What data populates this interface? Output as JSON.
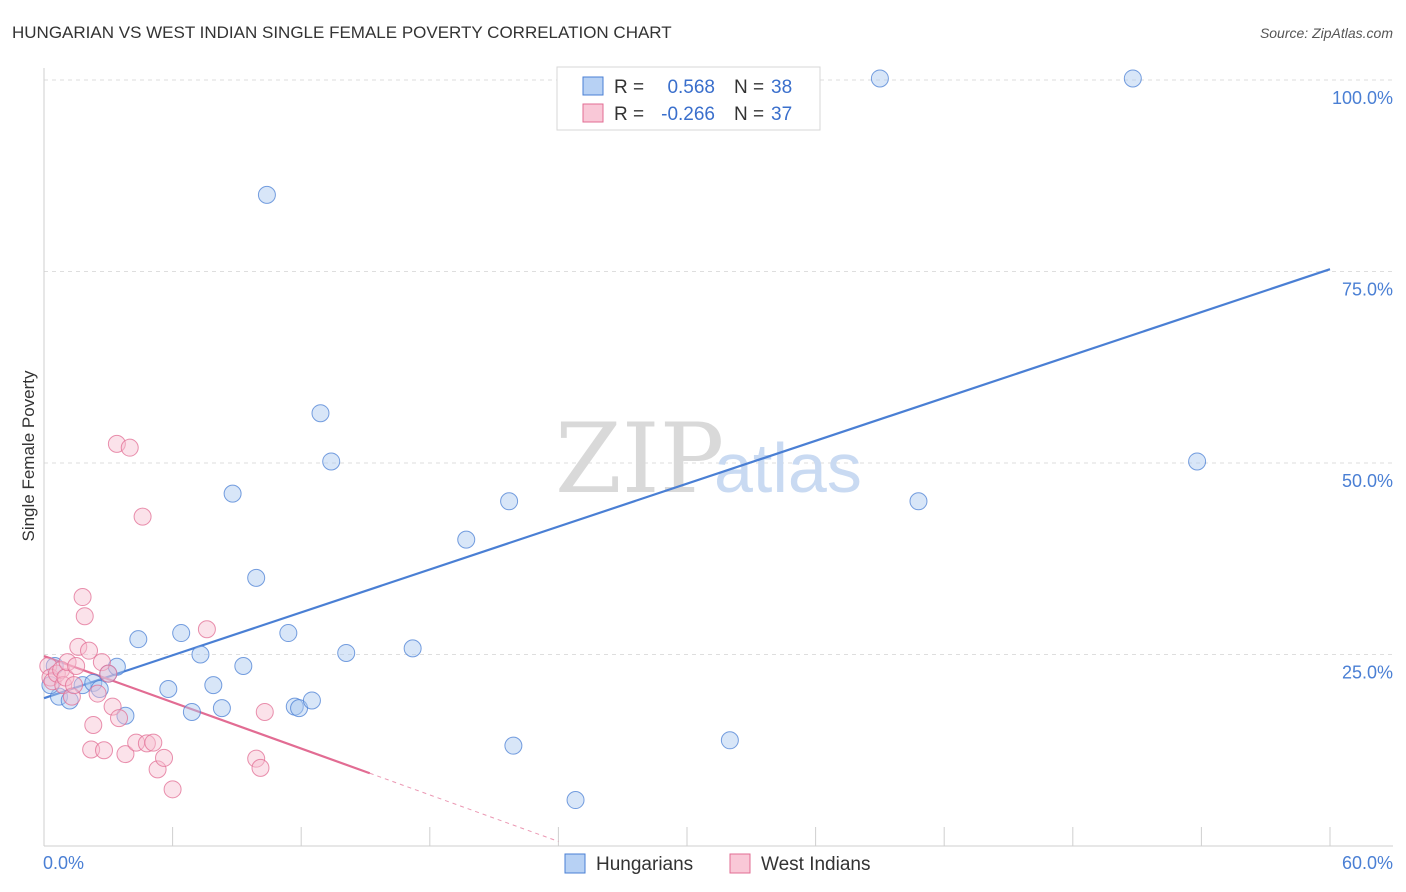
{
  "chart_data": {
    "type": "scatter",
    "title": "HUNGARIAN VS WEST INDIAN SINGLE FEMALE POVERTY CORRELATION CHART",
    "source": "Source: ZipAtlas.com",
    "ylabel": "Single Female Poverty",
    "xlabel": "",
    "xlim": [
      0,
      60
    ],
    "ylim": [
      0,
      100
    ],
    "x_tick_labels": {
      "min": "0.0%",
      "max": "60.0%"
    },
    "y_ticks": [
      {
        "value": 25,
        "label": "25.0%"
      },
      {
        "value": 50,
        "label": "50.0%"
      },
      {
        "value": 75,
        "label": "75.0%"
      },
      {
        "value": 100,
        "label": "100.0%"
      }
    ],
    "grid": true,
    "watermark": {
      "zip": "ZIP",
      "atlas": "atlas"
    },
    "legend": {
      "r_label": "R =",
      "n_label": "N =",
      "entries": [
        {
          "name": "Hungarians",
          "r": "0.568",
          "n": "38"
        },
        {
          "name": "West Indians",
          "r": "-0.266",
          "n": "37"
        }
      ]
    },
    "series": [
      {
        "name": "Hungarians",
        "color": "#4a7fd4",
        "fill": "#a9c8f0",
        "trendline": {
          "x0": 0,
          "y0": 19.3,
          "x1": 60,
          "y1": 75.3,
          "dashed_to": null
        },
        "points": [
          [
            0.5,
            23.5
          ],
          [
            0.7,
            19.5
          ],
          [
            1.2,
            19.0
          ],
          [
            1.8,
            21.0
          ],
          [
            2.3,
            21.3
          ],
          [
            2.6,
            20.5
          ],
          [
            3.0,
            22.5
          ],
          [
            3.4,
            23.4
          ],
          [
            3.8,
            17.0
          ],
          [
            4.4,
            27.0
          ],
          [
            5.8,
            20.5
          ],
          [
            6.4,
            27.8
          ],
          [
            6.9,
            17.5
          ],
          [
            7.3,
            25.0
          ],
          [
            7.9,
            21.0
          ],
          [
            8.3,
            18.0
          ],
          [
            8.8,
            46.0
          ],
          [
            9.3,
            23.5
          ],
          [
            9.9,
            35.0
          ],
          [
            10.4,
            85.0
          ],
          [
            11.4,
            27.8
          ],
          [
            11.7,
            18.2
          ],
          [
            11.9,
            18.0
          ],
          [
            12.5,
            19.0
          ],
          [
            12.9,
            56.5
          ],
          [
            13.4,
            50.2
          ],
          [
            14.1,
            25.2
          ],
          [
            17.2,
            25.8
          ],
          [
            19.7,
            40.0
          ],
          [
            21.7,
            45.0
          ],
          [
            21.9,
            13.1
          ],
          [
            24.8,
            6.0
          ],
          [
            32.0,
            13.8
          ],
          [
            39.0,
            100.2
          ],
          [
            40.8,
            45.0
          ],
          [
            50.8,
            100.2
          ],
          [
            53.8,
            50.2
          ],
          [
            0.3,
            21.0
          ]
        ]
      },
      {
        "name": "West Indians",
        "color": "#e26c93",
        "fill": "#f7bfd1",
        "trendline": {
          "x0": 0,
          "y0": 24.8,
          "x1": 15.2,
          "y1": 9.5,
          "dashed_to": {
            "x": 24,
            "y": 0.6
          }
        },
        "points": [
          [
            0.2,
            23.5
          ],
          [
            0.3,
            22.0
          ],
          [
            0.4,
            21.5
          ],
          [
            0.6,
            22.5
          ],
          [
            0.8,
            23.0
          ],
          [
            0.9,
            21.0
          ],
          [
            1.0,
            22.0
          ],
          [
            1.1,
            24.0
          ],
          [
            1.3,
            19.5
          ],
          [
            1.5,
            23.5
          ],
          [
            1.6,
            26.0
          ],
          [
            1.8,
            32.5
          ],
          [
            1.9,
            30.0
          ],
          [
            2.1,
            25.5
          ],
          [
            2.2,
            12.6
          ],
          [
            2.3,
            15.8
          ],
          [
            2.5,
            19.9
          ],
          [
            2.7,
            24.0
          ],
          [
            2.8,
            12.5
          ],
          [
            3.0,
            22.5
          ],
          [
            3.2,
            18.2
          ],
          [
            3.4,
            52.5
          ],
          [
            3.5,
            16.7
          ],
          [
            3.8,
            12.0
          ],
          [
            4.0,
            52.0
          ],
          [
            4.3,
            13.5
          ],
          [
            4.6,
            43.0
          ],
          [
            4.8,
            13.4
          ],
          [
            5.1,
            13.5
          ],
          [
            5.3,
            10.0
          ],
          [
            5.6,
            11.5
          ],
          [
            6.0,
            7.4
          ],
          [
            7.6,
            28.3
          ],
          [
            9.9,
            11.4
          ],
          [
            10.1,
            10.2
          ],
          [
            10.3,
            17.5
          ],
          [
            1.4,
            21.0
          ]
        ]
      }
    ]
  }
}
